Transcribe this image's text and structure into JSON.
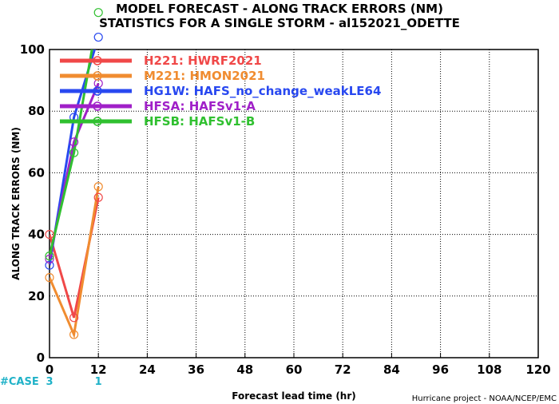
{
  "chart_data": {
    "type": "line",
    "title": "MODEL FORECAST - ALONG TRACK ERRORS (NM)",
    "subtitle": "STATISTICS FOR A SINGLE STORM - al152021_ODETTE",
    "xlabel": "Forecast lead time (hr)",
    "ylabel": "ALONG TRACK ERRORS (NM)",
    "xlim": [
      0,
      120
    ],
    "ylim": [
      0,
      100
    ],
    "xticks": [
      0,
      12,
      24,
      36,
      48,
      60,
      72,
      84,
      96,
      108,
      120
    ],
    "yticks": [
      0,
      20,
      40,
      60,
      80,
      100
    ],
    "x": [
      0,
      6,
      12
    ],
    "series": [
      {
        "name": "H221: HWRF2021",
        "color": "#f04848",
        "values": [
          40,
          13,
          52
        ]
      },
      {
        "name": "M221: HMON2021",
        "color": "#f08c30",
        "values": [
          26,
          7.5,
          55.5
        ]
      },
      {
        "name": "HG1W: HAFS_no_change_weakLE64",
        "color": "#2848f0",
        "values": [
          30,
          78,
          104
        ]
      },
      {
        "name": "HFSA: HAFSv1-A",
        "color": "#a020c8",
        "values": [
          32,
          70,
          89
        ]
      },
      {
        "name": "HFSB: HAFSv1-B",
        "color": "#30c030",
        "values": [
          33,
          66.5,
          112
        ]
      }
    ],
    "cases": {
      "label": "#CASE",
      "counts": [
        {
          "x": 0,
          "n": "3"
        },
        {
          "x": 12,
          "n": "1"
        }
      ]
    },
    "credit": "Hurricane project - NOAA/NCEP/EMC",
    "legend_position": "top-left"
  }
}
